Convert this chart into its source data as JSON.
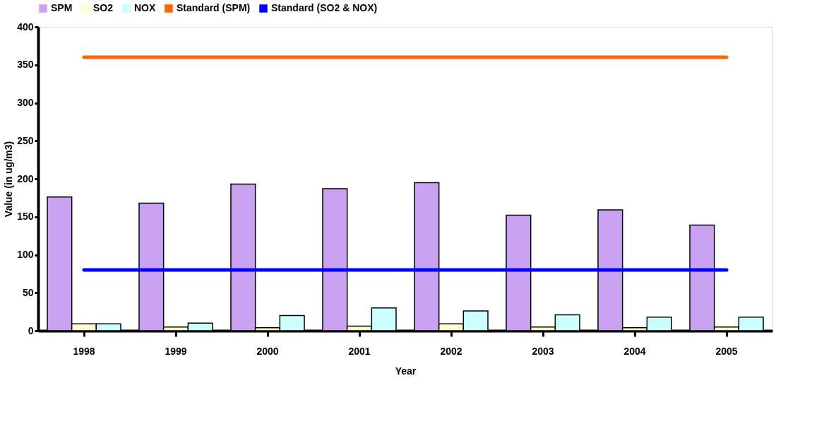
{
  "chart_data": {
    "type": "bar",
    "xlabel": "Year",
    "ylabel": "Value (in ug/m3)",
    "categories": [
      "1998",
      "1999",
      "2000",
      "2001",
      "2002",
      "2003",
      "2004",
      "2005"
    ],
    "series": [
      {
        "name": "SPM",
        "color": "#c9a3f2",
        "values": [
          176,
          168,
          193,
          187,
          195,
          152,
          159,
          139
        ]
      },
      {
        "name": "SO2",
        "color": "#ffffcc",
        "values": [
          9,
          5,
          4,
          6,
          9,
          5,
          4,
          5
        ]
      },
      {
        "name": "NOX",
        "color": "#ccffff",
        "values": [
          9,
          10,
          20,
          30,
          26,
          21,
          18,
          18
        ]
      },
      {
        "name": "Standard (SPM)",
        "type": "line",
        "color": "#ff6600",
        "values": [
          360,
          360,
          360,
          360,
          360,
          360,
          360,
          360
        ]
      },
      {
        "name": "Standard (SO2 & NOX)",
        "type": "line",
        "color": "#0000ff",
        "values": [
          80,
          80,
          80,
          80,
          80,
          80,
          80,
          80
        ]
      }
    ],
    "ylim": [
      0,
      400
    ],
    "yticks": [
      0,
      50,
      100,
      150,
      200,
      250,
      300,
      350,
      400
    ],
    "grid": false,
    "legend": "top"
  }
}
